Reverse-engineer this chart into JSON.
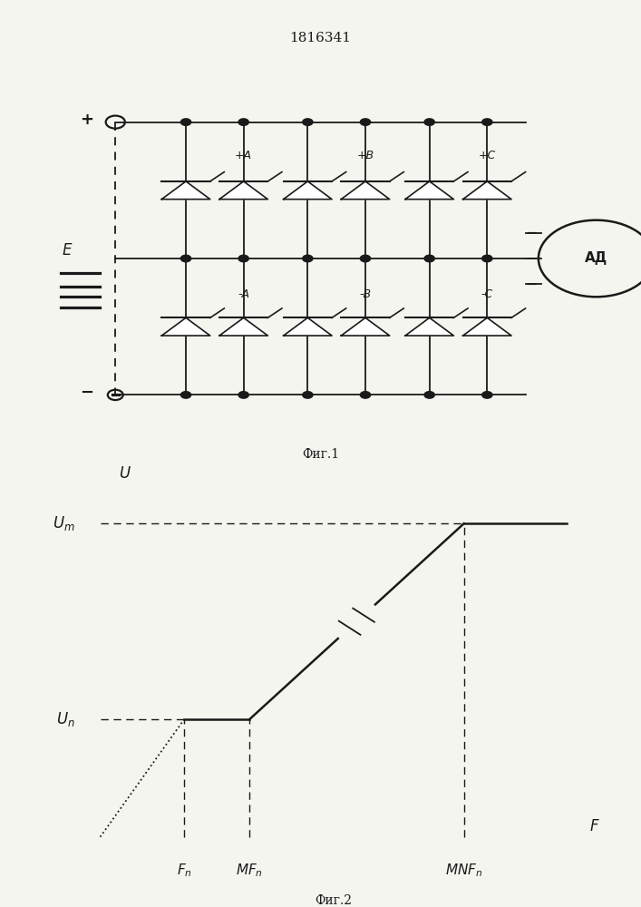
{
  "title": "1816341",
  "fig1_caption": "Фиг.1",
  "fig2_caption": "Фиг.2",
  "background_color": "#f5f5f0",
  "line_color": "#1a1a1a",
  "font_size_title": 11,
  "font_size_caption": 10,
  "font_size_label": 11,
  "Um_label": "U_m",
  "Un_label": "U_n",
  "U_axis_label": "U",
  "F_axis_label": "F",
  "Fn_label": "F_n",
  "MFn_label": "MF_n",
  "MNFn_label": "MNF_n",
  "xA": 0.22,
  "xMF": 0.37,
  "xMNF": 0.75,
  "yUn": 0.35,
  "yUm": 0.88
}
